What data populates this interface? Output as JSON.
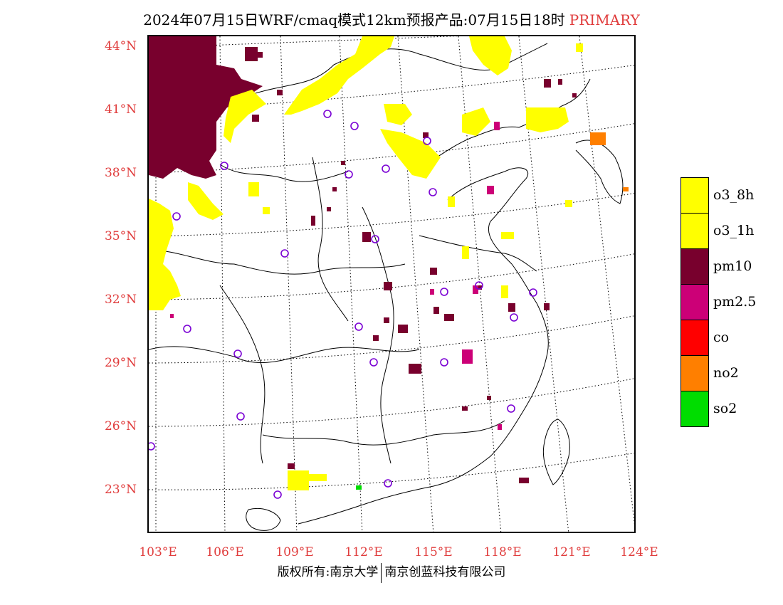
{
  "title": {
    "main": "2024年07月15日WRF/cmaq模式12km预报产品:07月15日18时",
    "highlight": "PRIMARY"
  },
  "axes": {
    "lat_labels": [
      "44°N",
      "41°N",
      "38°N",
      "35°N",
      "32°N",
      "29°N",
      "26°N",
      "23°N"
    ],
    "lon_labels": [
      "103°E",
      "106°E",
      "109°E",
      "112°E",
      "115°E",
      "118°E",
      "121°E",
      "124°E"
    ]
  },
  "legend": [
    {
      "label": "o3_8h",
      "color": "#ffff00"
    },
    {
      "label": "o3_1h",
      "color": "#ffff00"
    },
    {
      "label": "pm10",
      "color": "#78002d"
    },
    {
      "label": "pm2.5",
      "color": "#cc0077"
    },
    {
      "label": "co",
      "color": "#ff0000"
    },
    {
      "label": "no2",
      "color": "#ff7f00"
    },
    {
      "label": "so2",
      "color": "#00dd00"
    }
  ],
  "footer": {
    "left": "版权所有:南京大学",
    "right": "南京创蓝科技有限公司"
  },
  "colors": {
    "accent": "#e03c3c",
    "o3": "#ffff00",
    "pm10": "#78002d",
    "pm25": "#cc0077",
    "no2": "#ff7f00",
    "so2": "#00dd00",
    "station_marker": "#7a00d4"
  }
}
